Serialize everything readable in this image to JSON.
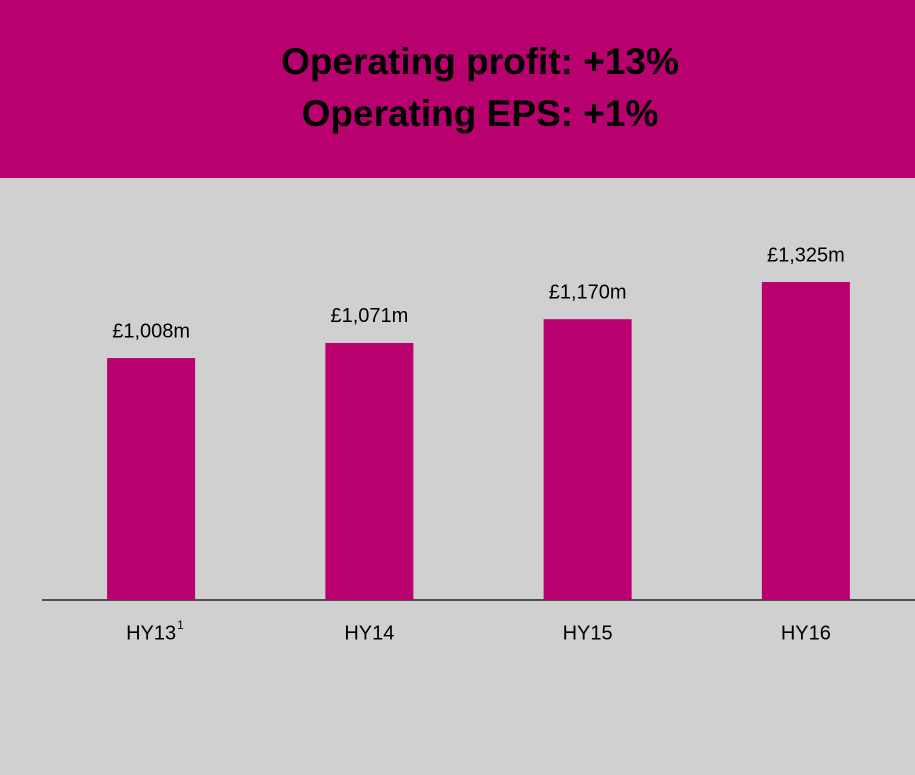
{
  "chart_data": {
    "type": "bar",
    "title": "Operating profit: +13%",
    "subtitle": "Operating EPS: +1%",
    "categories": [
      "HY13",
      "HY14",
      "HY15",
      "HY16"
    ],
    "footnote_marks": [
      {
        "category": 0,
        "text": "1"
      }
    ],
    "values": [
      1008,
      1071,
      1170,
      1325
    ],
    "value_labels": [
      "£1,008m",
      "£1,071m",
      "£1,170m",
      "£1,325m"
    ],
    "color": "#b8006e",
    "ylim": [
      0,
      1500
    ]
  }
}
